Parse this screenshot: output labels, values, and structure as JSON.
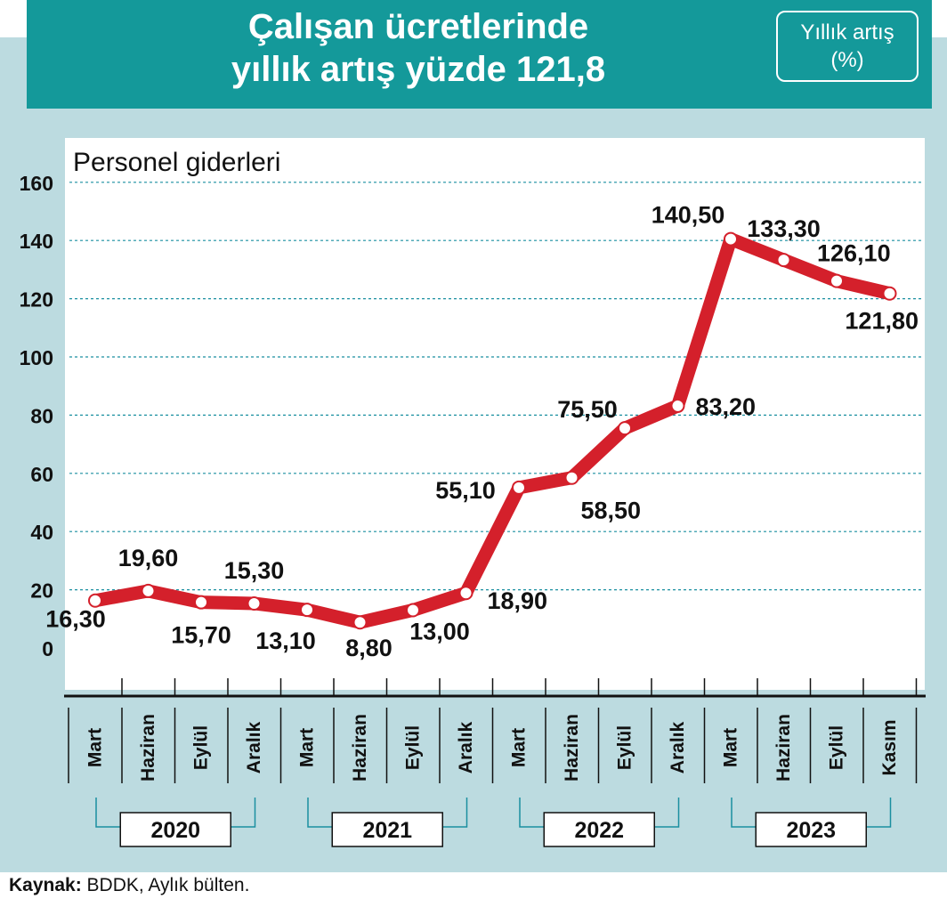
{
  "title_line1": "Çalışan ücretlerinde",
  "title_line2": "yıllık artış yüzde 121,8",
  "unit_line1": "Yıllık artış",
  "unit_line2": "(%)",
  "source_label": "Kaynak:",
  "source_text": " BDDK, Aylık bülten.",
  "colors": {
    "header": "#14999a",
    "frame": "#bcdbe0",
    "line": "#d4202b",
    "grid": "#1a8fa0"
  },
  "chart_data": {
    "type": "line",
    "title": "Personel giderleri",
    "ylim": [
      0,
      160
    ],
    "yticks": [
      "0",
      "20",
      "40",
      "60",
      "80",
      "100",
      "120",
      "140",
      "160"
    ],
    "categories": [
      "Mart",
      "Haziran",
      "Eylül",
      "Aralık",
      "Mart",
      "Haziran",
      "Eylül",
      "Aralık",
      "Mart",
      "Haziran",
      "Eylül",
      "Aralık",
      "Mart",
      "Haziran",
      "Eylül",
      "Kasım"
    ],
    "years": [
      "2020",
      "2021",
      "2022",
      "2023"
    ],
    "values": [
      16.3,
      19.6,
      15.7,
      15.3,
      13.1,
      8.8,
      13.0,
      18.9,
      55.1,
      58.5,
      75.5,
      83.2,
      140.5,
      133.3,
      126.1,
      121.8
    ],
    "labels": [
      "16,30",
      "19,60",
      "15,70",
      "15,30",
      "13,10",
      "8,80",
      "13,00",
      "18,90",
      "55,10",
      "58,50",
      "75,50",
      "83,20",
      "140,50",
      "133,30",
      "126,10",
      "121,80"
    ],
    "grid": true
  }
}
